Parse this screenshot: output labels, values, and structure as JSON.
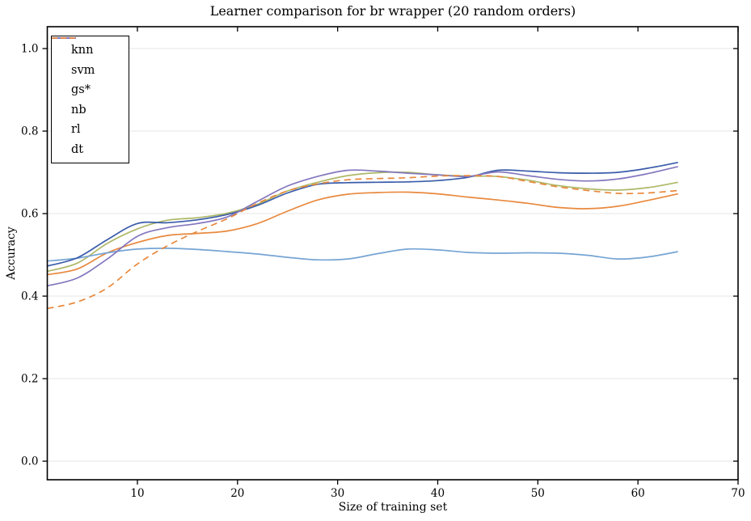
{
  "chart_data": {
    "type": "line",
    "title": "Learner comparison for br wrapper (20 random orders)",
    "xlabel": "Size of training set",
    "ylabel": "Accuracy",
    "xlim": [
      1,
      70
    ],
    "ylim": [
      -0.045,
      1.053
    ],
    "xticks": [
      10,
      20,
      30,
      40,
      50,
      60,
      70
    ],
    "yticks": [
      0.0,
      0.2,
      0.4,
      0.6,
      0.8,
      1.0
    ],
    "ytick_labels": [
      "0.0",
      "0.2",
      "0.4",
      "0.6",
      "0.8",
      "1.0"
    ],
    "grid": "horizontal",
    "grid_color": "#e6e6e6",
    "spine_color": "#000000",
    "legend_position": "upper left",
    "x": [
      1,
      4,
      7,
      10,
      13,
      16,
      19,
      22,
      25,
      28,
      31,
      34,
      37,
      40,
      43,
      46,
      49,
      52,
      55,
      58,
      61,
      64
    ],
    "series": [
      {
        "name": "knn",
        "color": "#E8893E",
        "style": "solid",
        "values": [
          0.452,
          0.466,
          0.505,
          0.53,
          0.547,
          0.552,
          0.558,
          0.576,
          0.606,
          0.633,
          0.647,
          0.651,
          0.652,
          0.648,
          0.64,
          0.633,
          0.625,
          0.615,
          0.612,
          0.618,
          0.632,
          0.648
        ]
      },
      {
        "name": "svm",
        "color": "#AEB868",
        "style": "solid",
        "values": [
          0.46,
          0.48,
          0.528,
          0.563,
          0.584,
          0.59,
          0.601,
          0.623,
          0.655,
          0.676,
          0.692,
          0.699,
          0.7,
          0.694,
          0.691,
          0.69,
          0.681,
          0.668,
          0.66,
          0.657,
          0.663,
          0.676
        ]
      },
      {
        "name": "gs*",
        "color": "#76A4D4",
        "style": "solid",
        "values": [
          0.485,
          0.492,
          0.505,
          0.514,
          0.516,
          0.513,
          0.508,
          0.502,
          0.494,
          0.488,
          0.49,
          0.503,
          0.514,
          0.512,
          0.506,
          0.504,
          0.505,
          0.504,
          0.499,
          0.49,
          0.495,
          0.508
        ]
      },
      {
        "name": "nb",
        "color": "#3A5CAA",
        "style": "solid",
        "values": [
          0.473,
          0.493,
          0.537,
          0.576,
          0.578,
          0.585,
          0.598,
          0.62,
          0.65,
          0.671,
          0.675,
          0.676,
          0.677,
          0.68,
          0.688,
          0.705,
          0.703,
          0.699,
          0.698,
          0.7,
          0.71,
          0.724
        ]
      },
      {
        "name": "rl",
        "color": "#8377BE",
        "style": "solid",
        "values": [
          0.425,
          0.444,
          0.49,
          0.545,
          0.566,
          0.576,
          0.592,
          0.63,
          0.667,
          0.69,
          0.705,
          0.703,
          0.698,
          0.694,
          0.69,
          0.701,
          0.692,
          0.683,
          0.679,
          0.684,
          0.697,
          0.714
        ]
      },
      {
        "name": "dt",
        "color": "#E8893E",
        "style": "dashed",
        "values": [
          0.37,
          0.386,
          0.42,
          0.478,
          0.522,
          0.557,
          0.588,
          0.625,
          0.655,
          0.672,
          0.682,
          0.685,
          0.687,
          0.691,
          0.692,
          0.69,
          0.678,
          0.665,
          0.656,
          0.649,
          0.65,
          0.656
        ]
      }
    ]
  }
}
